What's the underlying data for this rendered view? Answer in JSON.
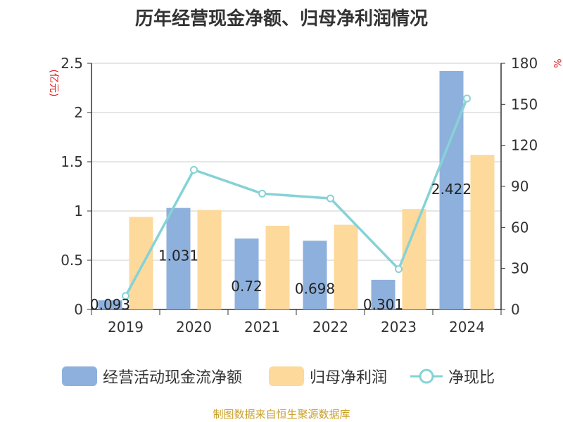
{
  "title": "历年经营现金净额、归母净利润情况",
  "source": "制图数据来自恒生聚源数据库",
  "chart_data": {
    "type": "bar",
    "categories": [
      "2019",
      "2020",
      "2021",
      "2022",
      "2023",
      "2024"
    ],
    "series": [
      {
        "name": "经营活动现金流净额",
        "type": "bar",
        "axis": "left",
        "color": "#8eb0dc",
        "values": [
          0.093,
          1.031,
          0.72,
          0.698,
          0.301,
          2.422
        ],
        "show_labels": true
      },
      {
        "name": "归母净利润",
        "type": "bar",
        "axis": "left",
        "color": "#fdd99b",
        "values": [
          0.94,
          1.01,
          0.85,
          0.86,
          1.02,
          1.57
        ],
        "show_labels": false
      },
      {
        "name": "净现比",
        "type": "line",
        "axis": "right",
        "color": "#86d2d6",
        "values": [
          9.9,
          102.1,
          84.7,
          81.2,
          29.5,
          154.3
        ],
        "show_labels": false
      }
    ],
    "y_left": {
      "unit": "(亿元)",
      "min": 0,
      "max": 2.5,
      "ticks": [
        0,
        0.5,
        1,
        1.5,
        2,
        2.5
      ],
      "tick_labels": [
        "0",
        "0.5",
        "1",
        "1.5",
        "2",
        "2.5"
      ]
    },
    "y_right": {
      "unit": "%",
      "min": 0,
      "max": 180,
      "ticks": [
        0,
        30,
        60,
        90,
        120,
        150,
        180
      ],
      "tick_labels": [
        "0",
        "30",
        "60",
        "90",
        "120",
        "150",
        "180"
      ]
    },
    "grid": true,
    "legend_position": "bottom"
  }
}
